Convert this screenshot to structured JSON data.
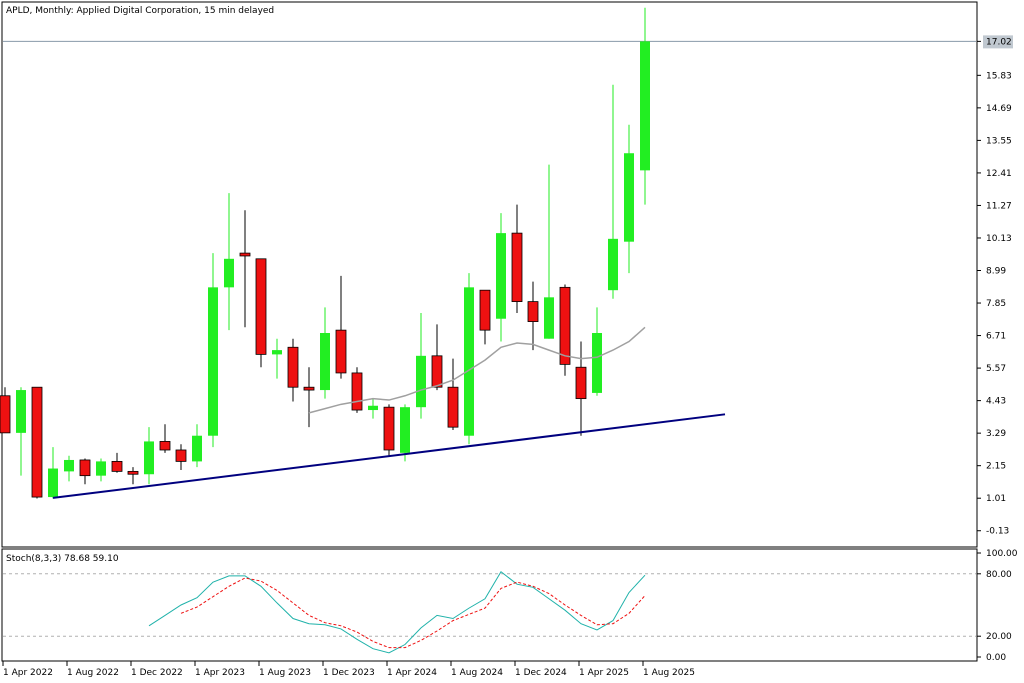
{
  "window": {
    "title": "APLD, Monthly:  Applied Digital Corporation, 15 min delayed"
  },
  "colors": {
    "bull": "#22ee22",
    "bear": "#ee1111",
    "wick_bull": "#22ee22",
    "wick_bear": "#000000",
    "ma": "#a0a0a0",
    "trendline": "#00007f",
    "stoch_main": "#20b2aa",
    "stoch_signal": "#ee1111",
    "price_line": "#8899aa",
    "price_tag_bg": "#c0c8d0"
  },
  "chart_data": [
    {
      "type": "candlestick",
      "title": "APLD, Monthly:  Applied Digital Corporation, 15 min delayed",
      "price_tag": 17.02,
      "ylim": [
        -0.7,
        18.4
      ],
      "y_ticks": [
        "17.02",
        "15.83",
        "14.69",
        "13.55",
        "12.41",
        "11.27",
        "10.13",
        "8.99",
        "7.85",
        "6.71",
        "5.57",
        "4.43",
        "3.29",
        "2.15",
        "1.01",
        "-0.13"
      ],
      "x_ticks": [
        "1 Apr 2022",
        "1 Aug 2022",
        "1 Dec 2022",
        "1 Apr 2023",
        "1 Aug 2023",
        "1 Dec 2023",
        "1 Apr 2024",
        "1 Aug 2024",
        "1 Dec 2024",
        "1 Apr 2025",
        "1 Aug 2025"
      ],
      "candles": [
        {
          "o": 4.6,
          "h": 4.9,
          "l": 3.3,
          "c": 3.3
        },
        {
          "o": 3.3,
          "h": 4.9,
          "l": 1.8,
          "c": 4.8
        },
        {
          "o": 4.9,
          "h": 4.9,
          "l": 1.0,
          "c": 1.05
        },
        {
          "o": 1.05,
          "h": 2.8,
          "l": 1.0,
          "c": 2.05
        },
        {
          "o": 1.95,
          "h": 2.5,
          "l": 1.6,
          "c": 2.35
        },
        {
          "o": 2.35,
          "h": 2.4,
          "l": 1.5,
          "c": 1.8
        },
        {
          "o": 1.8,
          "h": 2.4,
          "l": 1.6,
          "c": 2.3
        },
        {
          "o": 2.3,
          "h": 2.6,
          "l": 1.9,
          "c": 1.95
        },
        {
          "o": 1.95,
          "h": 2.1,
          "l": 1.5,
          "c": 1.85
        },
        {
          "o": 1.85,
          "h": 3.5,
          "l": 1.5,
          "c": 3.0
        },
        {
          "o": 3.0,
          "h": 3.6,
          "l": 2.6,
          "c": 2.7
        },
        {
          "o": 2.7,
          "h": 2.9,
          "l": 2.0,
          "c": 2.3
        },
        {
          "o": 2.3,
          "h": 3.6,
          "l": 2.1,
          "c": 3.2
        },
        {
          "o": 3.2,
          "h": 9.6,
          "l": 2.8,
          "c": 8.4
        },
        {
          "o": 8.4,
          "h": 11.7,
          "l": 6.9,
          "c": 9.4
        },
        {
          "o": 9.6,
          "h": 11.1,
          "l": 7.0,
          "c": 9.5
        },
        {
          "o": 9.4,
          "h": 9.4,
          "l": 5.6,
          "c": 6.05
        },
        {
          "o": 6.05,
          "h": 6.6,
          "l": 5.2,
          "c": 6.2
        },
        {
          "o": 6.3,
          "h": 6.6,
          "l": 4.4,
          "c": 4.9
        },
        {
          "o": 4.9,
          "h": 5.6,
          "l": 3.5,
          "c": 4.8
        },
        {
          "o": 4.8,
          "h": 7.7,
          "l": 4.5,
          "c": 6.8
        },
        {
          "o": 6.9,
          "h": 8.8,
          "l": 5.2,
          "c": 5.4
        },
        {
          "o": 5.4,
          "h": 5.6,
          "l": 4.0,
          "c": 4.1
        },
        {
          "o": 4.1,
          "h": 4.5,
          "l": 3.8,
          "c": 4.25
        },
        {
          "o": 4.2,
          "h": 4.3,
          "l": 2.5,
          "c": 2.7
        },
        {
          "o": 2.6,
          "h": 4.3,
          "l": 2.3,
          "c": 4.2
        },
        {
          "o": 4.2,
          "h": 7.5,
          "l": 3.8,
          "c": 6.0
        },
        {
          "o": 6.0,
          "h": 7.1,
          "l": 4.8,
          "c": 4.9
        },
        {
          "o": 4.9,
          "h": 5.9,
          "l": 3.4,
          "c": 3.5
        },
        {
          "o": 3.2,
          "h": 8.9,
          "l": 2.9,
          "c": 8.4
        },
        {
          "o": 8.3,
          "h": 8.3,
          "l": 6.4,
          "c": 6.9
        },
        {
          "o": 7.3,
          "h": 11.0,
          "l": 6.5,
          "c": 10.3
        },
        {
          "o": 10.3,
          "h": 11.3,
          "l": 7.5,
          "c": 7.9
        },
        {
          "o": 7.9,
          "h": 8.6,
          "l": 6.2,
          "c": 7.2
        },
        {
          "o": 6.6,
          "h": 12.7,
          "l": 6.6,
          "c": 8.05
        },
        {
          "o": 8.4,
          "h": 8.5,
          "l": 5.3,
          "c": 5.7
        },
        {
          "o": 5.6,
          "h": 6.5,
          "l": 3.2,
          "c": 4.5
        },
        {
          "o": 4.7,
          "h": 7.7,
          "l": 4.6,
          "c": 6.8
        },
        {
          "o": 8.3,
          "h": 15.5,
          "l": 8.0,
          "c": 10.1
        },
        {
          "o": 10.0,
          "h": 14.1,
          "l": 8.9,
          "c": 13.1
        },
        {
          "o": 12.5,
          "h": 18.2,
          "l": 11.3,
          "c": 17.02
        }
      ],
      "moving_average": [
        {
          "i": 19,
          "v": 4.0
        },
        {
          "i": 20,
          "v": 4.15
        },
        {
          "i": 21,
          "v": 4.3
        },
        {
          "i": 22,
          "v": 4.4
        },
        {
          "i": 23,
          "v": 4.5
        },
        {
          "i": 24,
          "v": 4.45
        },
        {
          "i": 25,
          "v": 4.6
        },
        {
          "i": 26,
          "v": 4.8
        },
        {
          "i": 27,
          "v": 4.95
        },
        {
          "i": 28,
          "v": 5.15
        },
        {
          "i": 29,
          "v": 5.5
        },
        {
          "i": 30,
          "v": 5.85
        },
        {
          "i": 31,
          "v": 6.3
        },
        {
          "i": 32,
          "v": 6.45
        },
        {
          "i": 33,
          "v": 6.4
        },
        {
          "i": 34,
          "v": 6.2
        },
        {
          "i": 35,
          "v": 6.0
        },
        {
          "i": 36,
          "v": 5.9
        },
        {
          "i": 37,
          "v": 5.95
        },
        {
          "i": 38,
          "v": 6.2
        },
        {
          "i": 39,
          "v": 6.5
        },
        {
          "i": 40,
          "v": 7.0
        }
      ],
      "trendline": {
        "i1": 3,
        "v1": 1.02,
        "i2": 45,
        "v2": 3.95
      }
    },
    {
      "type": "line",
      "title": "Stoch(8,3,3) 78.68 59.10",
      "ylim": [
        0,
        100
      ],
      "y_ticks": [
        "100.00",
        "80.00",
        "20.00",
        "0.00"
      ],
      "levels": [
        80,
        20
      ],
      "series": [
        {
          "name": "main",
          "values": [
            {
              "i": 9,
              "v": 30
            },
            {
              "i": 10,
              "v": 40
            },
            {
              "i": 11,
              "v": 50
            },
            {
              "i": 12,
              "v": 57
            },
            {
              "i": 13,
              "v": 72
            },
            {
              "i": 14,
              "v": 78
            },
            {
              "i": 15,
              "v": 78
            },
            {
              "i": 16,
              "v": 68
            },
            {
              "i": 17,
              "v": 52
            },
            {
              "i": 18,
              "v": 37
            },
            {
              "i": 19,
              "v": 32
            },
            {
              "i": 20,
              "v": 31
            },
            {
              "i": 21,
              "v": 27
            },
            {
              "i": 22,
              "v": 17
            },
            {
              "i": 23,
              "v": 8
            },
            {
              "i": 24,
              "v": 4
            },
            {
              "i": 25,
              "v": 12
            },
            {
              "i": 26,
              "v": 28
            },
            {
              "i": 27,
              "v": 40
            },
            {
              "i": 28,
              "v": 37
            },
            {
              "i": 29,
              "v": 47
            },
            {
              "i": 30,
              "v": 56
            },
            {
              "i": 31,
              "v": 82
            },
            {
              "i": 32,
              "v": 70
            },
            {
              "i": 33,
              "v": 67
            },
            {
              "i": 34,
              "v": 56
            },
            {
              "i": 35,
              "v": 45
            },
            {
              "i": 36,
              "v": 32
            },
            {
              "i": 37,
              "v": 26
            },
            {
              "i": 38,
              "v": 35
            },
            {
              "i": 39,
              "v": 62
            },
            {
              "i": 40,
              "v": 78.68
            }
          ]
        },
        {
          "name": "signal",
          "values": [
            {
              "i": 11,
              "v": 42
            },
            {
              "i": 12,
              "v": 48
            },
            {
              "i": 13,
              "v": 58
            },
            {
              "i": 14,
              "v": 68
            },
            {
              "i": 15,
              "v": 76
            },
            {
              "i": 16,
              "v": 73
            },
            {
              "i": 17,
              "v": 64
            },
            {
              "i": 18,
              "v": 52
            },
            {
              "i": 19,
              "v": 40
            },
            {
              "i": 20,
              "v": 33
            },
            {
              "i": 21,
              "v": 30
            },
            {
              "i": 22,
              "v": 24
            },
            {
              "i": 23,
              "v": 15
            },
            {
              "i": 24,
              "v": 9
            },
            {
              "i": 25,
              "v": 9
            },
            {
              "i": 26,
              "v": 16
            },
            {
              "i": 27,
              "v": 25
            },
            {
              "i": 28,
              "v": 35
            },
            {
              "i": 29,
              "v": 41
            },
            {
              "i": 30,
              "v": 47
            },
            {
              "i": 31,
              "v": 66
            },
            {
              "i": 32,
              "v": 72
            },
            {
              "i": 33,
              "v": 68
            },
            {
              "i": 34,
              "v": 61
            },
            {
              "i": 35,
              "v": 50
            },
            {
              "i": 36,
              "v": 40
            },
            {
              "i": 37,
              "v": 31
            },
            {
              "i": 38,
              "v": 32
            },
            {
              "i": 39,
              "v": 42
            },
            {
              "i": 40,
              "v": 59.1
            }
          ]
        }
      ]
    }
  ]
}
